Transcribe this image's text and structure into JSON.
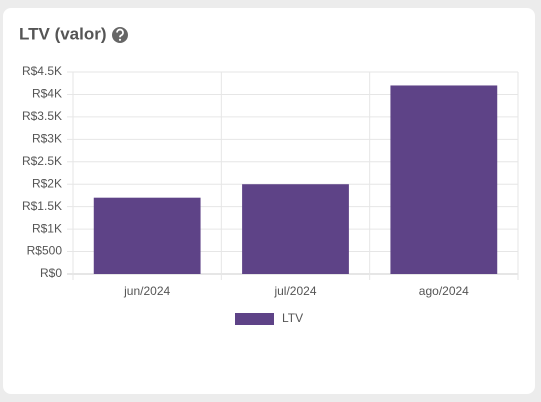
{
  "chart_data": {
    "type": "bar",
    "title": "LTV (valor)",
    "categories": [
      "jun/2024",
      "jul/2024",
      "ago/2024"
    ],
    "series": [
      {
        "name": "LTV",
        "color": "#5e4387",
        "values": [
          1700,
          2000,
          4200
        ]
      }
    ],
    "ylim": [
      0,
      4500
    ],
    "yticks": [
      {
        "value": 0,
        "label": "R$0"
      },
      {
        "value": 500,
        "label": "R$500"
      },
      {
        "value": 1000,
        "label": "R$1K"
      },
      {
        "value": 1500,
        "label": "R$1.5K"
      },
      {
        "value": 2000,
        "label": "R$2K"
      },
      {
        "value": 2500,
        "label": "R$2.5K"
      },
      {
        "value": 3000,
        "label": "R$3K"
      },
      {
        "value": 3500,
        "label": "R$3.5K"
      },
      {
        "value": 4000,
        "label": "R$4K"
      },
      {
        "value": 4500,
        "label": "R$4.5K"
      }
    ],
    "grid": true,
    "legend": "bottom"
  }
}
